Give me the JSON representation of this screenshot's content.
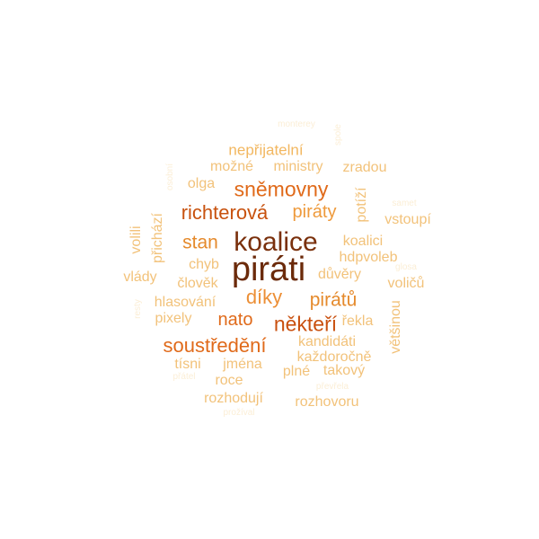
{
  "colors": {
    "darkest": "#6b2a0a",
    "dark": "#a8410a",
    "orange": "#e06a1a",
    "light_orange": "#ee9a3c",
    "tan": "#f2c27a",
    "pale": "#f8e2b8",
    "palest": "#fbeed6"
  },
  "words": {
    "pirati": "piráti",
    "koalice": "koalice",
    "snemovny": "sněmovny",
    "richterova": "richterová",
    "piraty": "piráty",
    "stan": "stan",
    "diky": "díky",
    "piratu": "pirátů",
    "nato": "nato",
    "nekteri": "někteří",
    "soustredeni": "soustředění",
    "neprijatelni": "nepřijatelní",
    "mozne": "možné",
    "ministry": "ministry",
    "zradou": "zradou",
    "olga": "olga",
    "potizi": "potíží",
    "vstoupi": "vstoupí",
    "koalici": "koalici",
    "hdpvoleb": "hdpvoleb",
    "duvery": "důvěry",
    "volicu": "voličů",
    "vetsinou": "většinou",
    "rekla": "řekla",
    "kandidati": "kandidáti",
    "kazdorocne": "každoročně",
    "takovy": "takový",
    "plne": "plné",
    "jmena": "jména",
    "tisni": "tísni",
    "roce": "roce",
    "rozhoduji": "rozhodují",
    "rozhovoru": "rozhovoru",
    "hlasovani": "hlasování",
    "pixely": "pixely",
    "clovek": "člověk",
    "chyb": "chyb",
    "vlady": "vlády",
    "volili": "volili",
    "prichazi": "přichází",
    "monterey": "monterey",
    "spole": "spole",
    "osobni": "osobní",
    "samet": "samet",
    "glosa": "glosa",
    "resty": "resty",
    "pratel": "přátel",
    "prevrela": "převřela",
    "prozival": "prožíval"
  }
}
